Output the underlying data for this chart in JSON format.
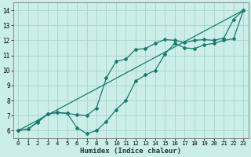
{
  "xlabel": "Humidex (Indice chaleur)",
  "bg_color": "#cceee8",
  "grid_color": "#aad8d0",
  "line_color": "#1a7a6e",
  "xlim": [
    -0.5,
    23.5
  ],
  "ylim": [
    5.5,
    14.5
  ],
  "xticks": [
    0,
    1,
    2,
    3,
    4,
    5,
    6,
    7,
    8,
    9,
    10,
    11,
    12,
    13,
    14,
    15,
    16,
    17,
    18,
    19,
    20,
    21,
    22,
    23
  ],
  "yticks": [
    6,
    7,
    8,
    9,
    10,
    11,
    12,
    13,
    14
  ],
  "line1_x": [
    0,
    1,
    2,
    3,
    4,
    5,
    6,
    7,
    8,
    9,
    10,
    11,
    12,
    13,
    14,
    15,
    16,
    17,
    18,
    19,
    20,
    21,
    22,
    23
  ],
  "line1_y": [
    6.0,
    6.1,
    6.6,
    7.1,
    7.2,
    7.15,
    6.2,
    5.8,
    6.0,
    6.6,
    7.4,
    8.0,
    9.3,
    9.7,
    10.0,
    11.1,
    11.8,
    11.5,
    11.45,
    11.7,
    11.8,
    12.0,
    12.1,
    14.0
  ],
  "line2_x": [
    0,
    1,
    2,
    3,
    4,
    5,
    6,
    7,
    8,
    9,
    10,
    11,
    12,
    13,
    14,
    15,
    16,
    17,
    18,
    19,
    20,
    21,
    22,
    23
  ],
  "line2_y": [
    6.0,
    6.1,
    6.55,
    7.1,
    7.2,
    7.15,
    7.05,
    7.0,
    7.5,
    9.5,
    10.6,
    10.75,
    11.4,
    11.45,
    11.8,
    12.05,
    12.0,
    11.85,
    12.0,
    12.05,
    12.0,
    12.15,
    13.4,
    14.0
  ],
  "line3_x": [
    0,
    23
  ],
  "line3_y": [
    6.0,
    14.0
  ]
}
